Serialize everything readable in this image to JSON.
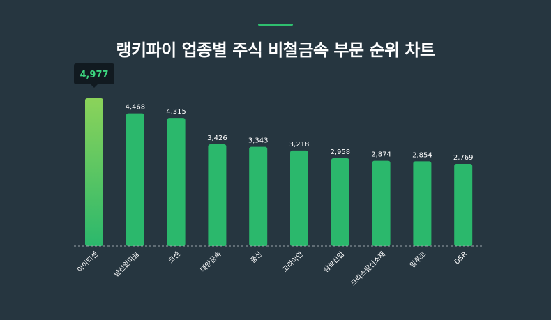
{
  "title": "랭키파이 업종별 주식 비철금속 부문 순위 차트",
  "colors": {
    "background": "#263640",
    "bar": "#2bb86c",
    "highlight_top": "#8bd35a",
    "tooltip_bg": "#111a20",
    "tooltip_text": "#3cd47e",
    "accent": "#2fbf6f"
  },
  "chart_data": {
    "type": "bar",
    "title": "랭키파이 업종별 주식 비철금속 부문 순위 차트",
    "categories": [
      "아이티센",
      "남선알미늄",
      "코센",
      "대양금속",
      "풍산",
      "고려아연",
      "삼보산업",
      "크리스탈신소재",
      "알루코",
      "DSR"
    ],
    "values": [
      4977,
      4468,
      4315,
      3426,
      3343,
      3218,
      2958,
      2874,
      2854,
      2769
    ],
    "value_labels": [
      "4,977",
      "4,468",
      "4,315",
      "3,426",
      "3,343",
      "3,218",
      "2,958",
      "2,874",
      "2,854",
      "2,769"
    ],
    "highlighted_index": 0,
    "grid": false,
    "baseline": "dashed",
    "ylim": [
      0,
      5000
    ]
  }
}
